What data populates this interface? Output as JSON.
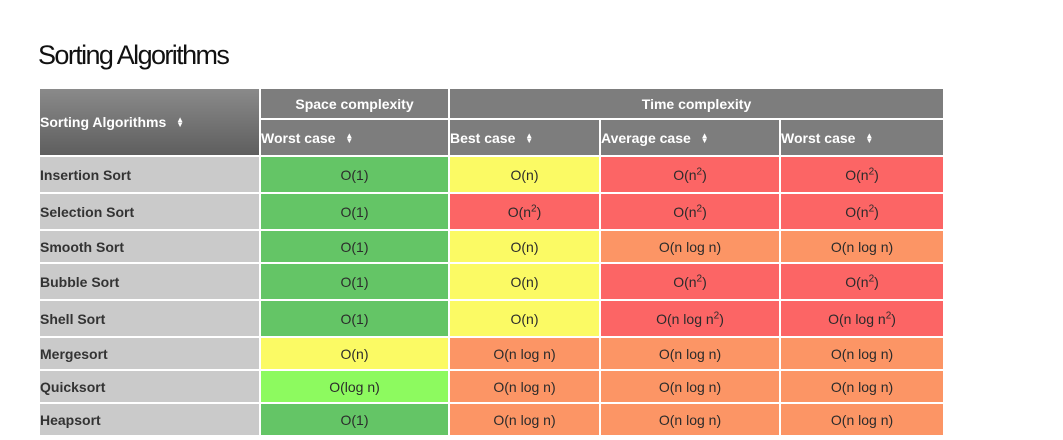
{
  "page": {
    "title": "Sorting Algorithms"
  },
  "table": {
    "corner_header": "Sorting Algorithms",
    "group_headers": [
      "Space complexity",
      "Time complexity"
    ],
    "sub_headers": [
      "Worst case",
      "Best case",
      "Average case",
      "Worst case"
    ],
    "colors": {
      "green": "#64c566",
      "lightgreen": "#8dfa5f",
      "yellow": "#fbfa64",
      "red": "#fc6565",
      "orange": "#fc9565",
      "header": "#7d7d7d",
      "row_label": "#cacaca"
    },
    "rows": [
      {
        "name": "Insertion Sort",
        "cells": [
          {
            "text": "O(1)",
            "color": "green"
          },
          {
            "text": "O(n)",
            "color": "yellow"
          },
          {
            "text": "O(n",
            "sup": "2",
            "after": ")",
            "color": "red"
          },
          {
            "text": "O(n",
            "sup": "2",
            "after": ")",
            "color": "red"
          }
        ]
      },
      {
        "name": "Selection Sort",
        "cells": [
          {
            "text": "O(1)",
            "color": "green"
          },
          {
            "text": "O(n",
            "sup": "2",
            "after": ")",
            "color": "red"
          },
          {
            "text": "O(n",
            "sup": "2",
            "after": ")",
            "color": "red"
          },
          {
            "text": "O(n",
            "sup": "2",
            "after": ")",
            "color": "red"
          }
        ]
      },
      {
        "name": "Smooth Sort",
        "cells": [
          {
            "text": "O(1)",
            "color": "green"
          },
          {
            "text": "O(n)",
            "color": "yellow"
          },
          {
            "text": "O(n log n)",
            "color": "orange"
          },
          {
            "text": "O(n log n)",
            "color": "orange"
          }
        ]
      },
      {
        "name": "Bubble Sort",
        "cells": [
          {
            "text": "O(1)",
            "color": "green"
          },
          {
            "text": "O(n)",
            "color": "yellow"
          },
          {
            "text": "O(n",
            "sup": "2",
            "after": ")",
            "color": "red"
          },
          {
            "text": "O(n",
            "sup": "2",
            "after": ")",
            "color": "red"
          }
        ]
      },
      {
        "name": "Shell Sort",
        "cells": [
          {
            "text": "O(1)",
            "color": "green"
          },
          {
            "text": "O(n)",
            "color": "yellow"
          },
          {
            "text": "O(n log n",
            "sup": "2",
            "after": ")",
            "color": "red"
          },
          {
            "text": "O(n log n",
            "sup": "2",
            "after": ")",
            "color": "red"
          }
        ]
      },
      {
        "name": "Mergesort",
        "cells": [
          {
            "text": "O(n)",
            "color": "yellow"
          },
          {
            "text": "O(n log n)",
            "color": "orange"
          },
          {
            "text": "O(n log n)",
            "color": "orange"
          },
          {
            "text": "O(n log n)",
            "color": "orange"
          }
        ]
      },
      {
        "name": "Quicksort",
        "cells": [
          {
            "text": "O(log n)",
            "color": "lightgreen"
          },
          {
            "text": "O(n log n)",
            "color": "orange"
          },
          {
            "text": "O(n log n)",
            "color": "orange"
          },
          {
            "text": "O(n log n)",
            "color": "orange"
          }
        ]
      },
      {
        "name": "Heapsort",
        "cells": [
          {
            "text": "O(1)",
            "color": "green"
          },
          {
            "text": "O(n log n)",
            "color": "orange"
          },
          {
            "text": "O(n log n)",
            "color": "orange"
          },
          {
            "text": "O(n log n)",
            "color": "orange"
          }
        ]
      }
    ]
  }
}
